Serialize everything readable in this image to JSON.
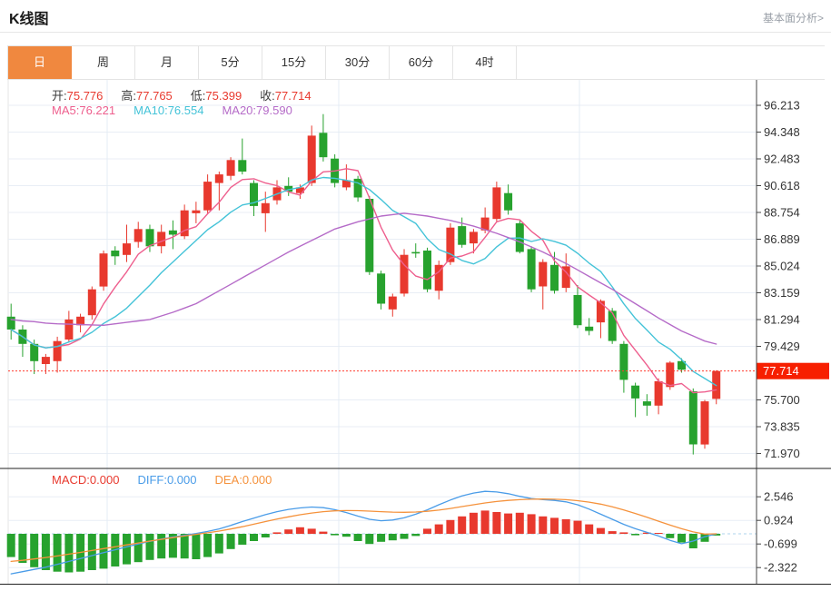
{
  "header": {
    "title": "K线图",
    "analysis_link": "基本面分析>"
  },
  "tabs": [
    {
      "label": "日",
      "active": true
    },
    {
      "label": "周",
      "active": false
    },
    {
      "label": "月",
      "active": false
    },
    {
      "label": "5分",
      "active": false
    },
    {
      "label": "15分",
      "active": false
    },
    {
      "label": "30分",
      "active": false
    },
    {
      "label": "60分",
      "active": false
    },
    {
      "label": "4时",
      "active": false
    }
  ],
  "legend": {
    "ohlc": [
      {
        "label": "开:",
        "value": "75.776"
      },
      {
        "label": "高:",
        "value": "77.765"
      },
      {
        "label": "低:",
        "value": "75.399"
      },
      {
        "label": "收:",
        "value": "77.714"
      }
    ],
    "ma": [
      {
        "label": "MA5:",
        "value": "76.221",
        "color": "#ee5f8e"
      },
      {
        "label": "MA10:",
        "value": "76.554",
        "color": "#44c3d8"
      },
      {
        "label": "MA20:",
        "value": "79.590",
        "color": "#b56bc8"
      }
    ],
    "macd": [
      {
        "label": "MACD:",
        "value": "0.000",
        "color": "#e8392e"
      },
      {
        "label": "DIFF:",
        "value": "0.000",
        "color": "#4a9ce8"
      },
      {
        "label": "DEA:",
        "value": "0.000",
        "color": "#f5923c"
      }
    ]
  },
  "colors": {
    "up": "#e8392e",
    "down": "#27a22e",
    "ma5": "#ee5f8e",
    "ma10": "#44c3d8",
    "ma20": "#b56bc8",
    "diff": "#4a9ce8",
    "dea": "#f5923c",
    "badge": "#f71f00",
    "tab_active": "#f0883f",
    "grid": "#e9eef5",
    "vgrid": "#e4ecf4",
    "axis": "#444444",
    "tick_text": "#333333",
    "price_dotted": "#ff3b2f",
    "zero_dashed": "#aed3ee",
    "separator": "#222222",
    "left_border": "#e6e6e6"
  },
  "chart_data": {
    "type": "candlestick+macd",
    "price_panel": {
      "title": "K线图 daily candles",
      "tick_labels": [
        "96.213",
        "94.348",
        "92.483",
        "90.618",
        "88.754",
        "86.889",
        "85.024",
        "83.159",
        "81.294",
        "79.429",
        "75.700",
        "73.835",
        "71.970"
      ],
      "last_price_label": "77.714",
      "last_price_value": 77.714,
      "candles_ohlc": [
        [
          81.5,
          82.4,
          79.9,
          80.6
        ],
        [
          80.6,
          80.9,
          78.7,
          79.6
        ],
        [
          79.6,
          79.9,
          77.5,
          78.4
        ],
        [
          78.2,
          78.9,
          77.5,
          78.7
        ],
        [
          78.4,
          80.1,
          77.6,
          79.8
        ],
        [
          79.9,
          81.9,
          79.7,
          81.3
        ],
        [
          80.9,
          81.7,
          80.4,
          81.5
        ],
        [
          81.6,
          83.6,
          81.3,
          83.4
        ],
        [
          83.6,
          86.1,
          83.3,
          85.9
        ],
        [
          86.1,
          86.4,
          85.1,
          85.7
        ],
        [
          85.8,
          87.9,
          85.3,
          86.6
        ],
        [
          86.7,
          88.1,
          86.3,
          87.6
        ],
        [
          87.6,
          87.9,
          86.0,
          86.4
        ],
        [
          86.4,
          87.9,
          85.9,
          87.4
        ],
        [
          87.5,
          88.2,
          86.2,
          87.2
        ],
        [
          87.1,
          89.3,
          86.9,
          88.9
        ],
        [
          88.7,
          89.5,
          88.0,
          88.9
        ],
        [
          88.9,
          91.4,
          88.7,
          90.9
        ],
        [
          90.8,
          91.6,
          88.9,
          91.4
        ],
        [
          91.3,
          92.6,
          91.0,
          92.4
        ],
        [
          92.4,
          93.9,
          91.4,
          91.6
        ],
        [
          90.8,
          91.0,
          88.5,
          89.2
        ],
        [
          88.7,
          90.2,
          87.4,
          89.4
        ],
        [
          89.6,
          91.0,
          89.3,
          90.5
        ],
        [
          90.6,
          91.2,
          89.9,
          90.2
        ],
        [
          90.1,
          90.7,
          89.7,
          90.5
        ],
        [
          90.8,
          94.8,
          90.6,
          94.1
        ],
        [
          94.3,
          95.6,
          92.3,
          92.6
        ],
        [
          92.5,
          92.8,
          90.5,
          90.8
        ],
        [
          90.5,
          92.1,
          90.3,
          91.0
        ],
        [
          91.1,
          91.3,
          89.5,
          89.8
        ],
        [
          89.7,
          89.9,
          84.4,
          84.6
        ],
        [
          84.5,
          84.7,
          82.0,
          82.4
        ],
        [
          82.0,
          83.1,
          81.5,
          82.9
        ],
        [
          83.1,
          86.2,
          82.9,
          85.8
        ],
        [
          86.0,
          86.6,
          85.6,
          85.9
        ],
        [
          86.1,
          86.3,
          83.2,
          83.4
        ],
        [
          83.3,
          85.4,
          82.7,
          85.1
        ],
        [
          85.3,
          88.0,
          85.1,
          87.7
        ],
        [
          87.8,
          88.4,
          86.3,
          86.5
        ],
        [
          86.6,
          87.6,
          85.9,
          87.4
        ],
        [
          87.5,
          89.1,
          87.3,
          88.4
        ],
        [
          88.3,
          90.9,
          88.1,
          90.5
        ],
        [
          90.1,
          90.7,
          88.6,
          88.9
        ],
        [
          88.0,
          88.2,
          85.9,
          86.0
        ],
        [
          86.2,
          86.4,
          83.2,
          83.4
        ],
        [
          83.6,
          85.5,
          82.0,
          85.3
        ],
        [
          85.1,
          86.0,
          83.1,
          83.3
        ],
        [
          83.5,
          85.9,
          83.2,
          85.0
        ],
        [
          83.0,
          83.7,
          80.7,
          80.9
        ],
        [
          80.8,
          81.4,
          80.2,
          80.5
        ],
        [
          81.1,
          82.7,
          80.0,
          82.6
        ],
        [
          81.9,
          82.1,
          79.6,
          79.8
        ],
        [
          79.6,
          79.8,
          76.2,
          77.1
        ],
        [
          76.7,
          76.9,
          74.5,
          75.8
        ],
        [
          75.6,
          76.1,
          74.6,
          75.3
        ],
        [
          75.3,
          77.2,
          74.7,
          77.0
        ],
        [
          76.6,
          78.4,
          76.4,
          78.3
        ],
        [
          78.4,
          78.6,
          77.6,
          77.8
        ],
        [
          76.3,
          76.5,
          71.9,
          72.6
        ],
        [
          72.6,
          75.7,
          72.3,
          75.6
        ],
        [
          75.776,
          77.765,
          75.399,
          77.714
        ]
      ],
      "ma20_values": [
        81.3,
        81.2,
        81.15,
        81.05,
        81.0,
        80.97,
        80.95,
        80.92,
        80.9,
        81.0,
        81.1,
        81.2,
        81.3,
        81.55,
        81.8,
        82.1,
        82.4,
        82.85,
        83.3,
        83.75,
        84.2,
        84.65,
        85.1,
        85.55,
        86.0,
        86.4,
        86.8,
        87.2,
        87.6,
        87.85,
        88.1,
        88.3,
        88.5,
        88.6,
        88.7,
        88.6,
        88.5,
        88.35,
        88.2,
        88.0,
        87.8,
        87.55,
        87.3,
        87.0,
        86.7,
        86.35,
        86.0,
        85.6,
        85.2,
        84.75,
        84.3,
        83.85,
        83.4,
        82.9,
        82.4,
        81.9,
        81.4,
        80.95,
        80.5,
        80.15,
        79.8,
        79.59
      ]
    },
    "macd_panel": {
      "tick_labels": [
        "2.546",
        "0.924",
        "-0.699",
        "-2.322"
      ],
      "hist": [
        -1.6,
        -2.0,
        -2.3,
        -2.5,
        -2.6,
        -2.65,
        -2.6,
        -2.5,
        -2.4,
        -2.25,
        -2.1,
        -1.95,
        -1.8,
        -1.7,
        -1.65,
        -1.7,
        -1.75,
        -1.6,
        -1.35,
        -1.05,
        -0.75,
        -0.5,
        -0.25,
        0.1,
        0.3,
        0.45,
        0.35,
        0.15,
        -0.1,
        -0.2,
        -0.5,
        -0.7,
        -0.55,
        -0.45,
        -0.35,
        -0.15,
        0.35,
        0.65,
        0.95,
        1.2,
        1.45,
        1.6,
        1.5,
        1.4,
        1.45,
        1.35,
        1.2,
        1.1,
        1.0,
        0.9,
        0.65,
        0.4,
        0.18,
        0.1,
        -0.1,
        0.08,
        0.06,
        -0.3,
        -0.6,
        -1.0,
        -0.55,
        -0.12
      ],
      "diff": [
        -2.75,
        -2.6,
        -2.45,
        -2.3,
        -2.1,
        -1.9,
        -1.7,
        -1.5,
        -1.3,
        -1.1,
        -0.9,
        -0.7,
        -0.52,
        -0.36,
        -0.22,
        -0.1,
        0.02,
        0.16,
        0.34,
        0.58,
        0.84,
        1.08,
        1.32,
        1.52,
        1.68,
        1.78,
        1.84,
        1.8,
        1.66,
        1.46,
        1.22,
        1.0,
        0.9,
        0.95,
        1.1,
        1.35,
        1.65,
        2.0,
        2.32,
        2.6,
        2.8,
        2.92,
        2.88,
        2.76,
        2.58,
        2.42,
        2.35,
        2.3,
        2.2,
        2.0,
        1.7,
        1.35,
        1.0,
        0.65,
        0.35,
        0.1,
        -0.15,
        -0.45,
        -0.68,
        -0.5,
        -0.2,
        0.0
      ],
      "dea": [
        -1.9,
        -1.82,
        -1.73,
        -1.63,
        -1.52,
        -1.4,
        -1.28,
        -1.15,
        -1.02,
        -0.89,
        -0.76,
        -0.63,
        -0.5,
        -0.38,
        -0.26,
        -0.15,
        -0.04,
        0.07,
        0.19,
        0.33,
        0.49,
        0.66,
        0.84,
        1.01,
        1.17,
        1.31,
        1.43,
        1.52,
        1.58,
        1.6,
        1.59,
        1.56,
        1.52,
        1.49,
        1.48,
        1.5,
        1.55,
        1.63,
        1.74,
        1.87,
        2.0,
        2.12,
        2.22,
        2.3,
        2.35,
        2.38,
        2.39,
        2.38,
        2.35,
        2.28,
        2.18,
        2.04,
        1.86,
        1.64,
        1.4,
        1.14,
        0.87,
        0.6,
        0.35,
        0.13,
        -0.02,
        0.0
      ]
    }
  }
}
